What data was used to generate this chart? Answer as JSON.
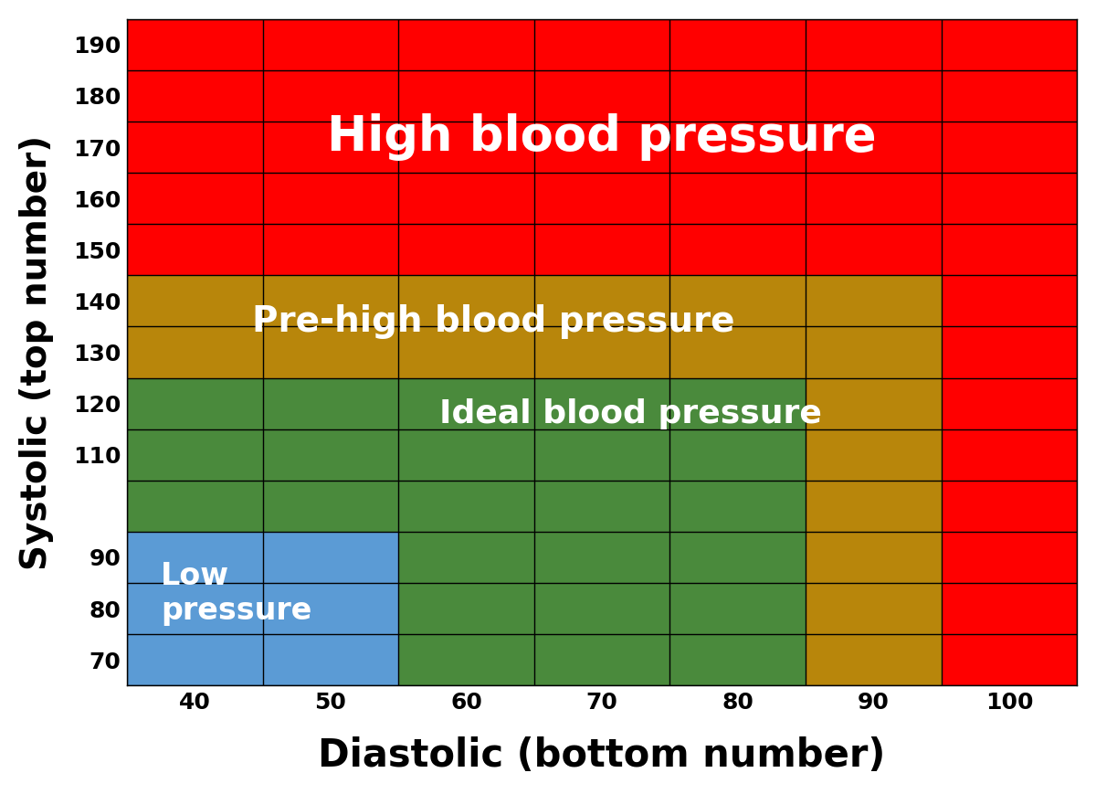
{
  "xlabel": "Diastolic (bottom number)",
  "ylabel": "Systolic (top number)",
  "color_red": "#FF0000",
  "color_green": "#4A8A3C",
  "color_yellow": "#B8860B",
  "color_blue": "#5B9BD5",
  "color_white": "#FFFFFF",
  "x_tick_labels": [
    "40",
    "50",
    "60",
    "70",
    "80",
    "90",
    "100"
  ],
  "y_tick_labels": [
    "190",
    "180",
    "170",
    "160",
    "150",
    "140",
    "130",
    "120",
    "110",
    "90",
    "80",
    "70"
  ],
  "annotation_high": {
    "text": "High blood pressure",
    "fontsize": 38
  },
  "annotation_prehigh": {
    "text": "Pre-high blood pressure",
    "fontsize": 28
  },
  "annotation_ideal": {
    "text": "Ideal blood pressure",
    "fontsize": 26
  },
  "annotation_low": {
    "text": "Low\npressure",
    "fontsize": 24
  },
  "xlabel_fontsize": 30,
  "ylabel_fontsize": 28,
  "tick_fontsize": 18
}
